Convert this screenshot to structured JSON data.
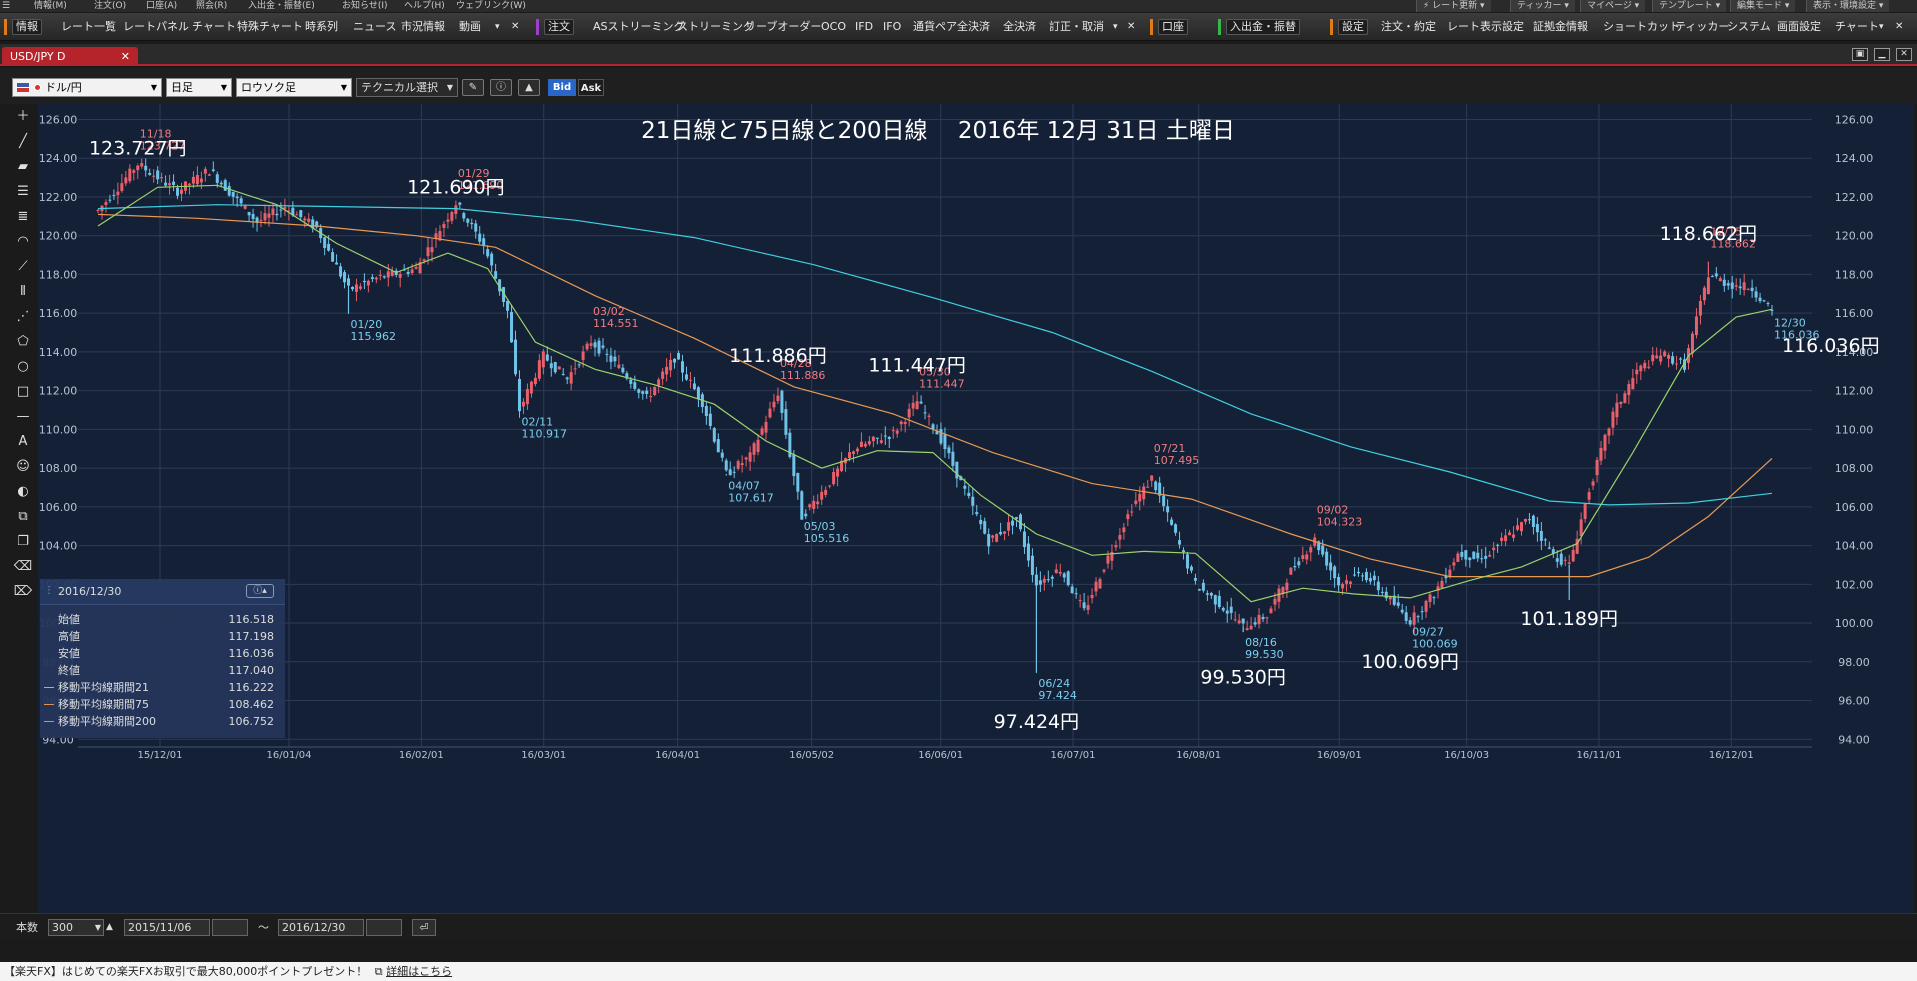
{
  "menubar": {
    "items": [
      "情報(M)",
      "注文(O)",
      "口座(A)",
      "照会(R)",
      "入出金・振替(E)",
      "お知らせ(I)",
      "ヘルプ(H)",
      "ウェブリンク(W)"
    ],
    "right_items": [
      "⚡ レート更新 ▾",
      "ティッカー ▾",
      "マイページ ▾",
      "テンプレート ▾",
      "編集モード ▾",
      "表示・環境設定 ▾"
    ]
  },
  "toolbar": {
    "items": [
      "情報",
      "レート一覧",
      "レートパネル",
      "チャート",
      "特殊チャート",
      "時系列",
      "ニュース",
      "市況情報",
      "動画",
      "注文",
      "ASストリーミング",
      "ストリーミング",
      "リーブオーダー",
      "OCO",
      "IFD",
      "IFO",
      "通貨ペア全決済",
      "全決済",
      "訂正・取消",
      "口座",
      "入出金・振替",
      "設定",
      "注文・約定",
      "レート表示設定",
      "証拠金情報",
      "ショートカット",
      "ティッカー",
      "システム",
      "画面設定",
      "チャート"
    ],
    "colors": {
      "orange": "#e07b1a",
      "purple": "#9b3fc9",
      "green": "#3bb54a"
    }
  },
  "tab": {
    "label": "USD/JPY D",
    "close": "✕"
  },
  "controls": {
    "pair": "ドル/円",
    "period": "日足",
    "chart_kind": "ロウソク足",
    "technical": "テクニカル選択",
    "bid": "Bid",
    "ask": "Ask"
  },
  "chart_title": "21日線と75日線と200日線　 2016年 12月 31日 土曜日",
  "chart_data": {
    "type": "candlestick",
    "ylim": [
      94,
      126
    ],
    "y_ticks": [
      "126.00",
      "124.00",
      "122.00",
      "120.00",
      "118.00",
      "116.00",
      "114.00",
      "112.00",
      "110.00",
      "108.00",
      "106.00",
      "104.00",
      "102.00",
      "100.00",
      "98.00",
      "96.00",
      "94.00"
    ],
    "x_ticks": [
      "15/12/01",
      "16/01/04",
      "16/02/01",
      "16/03/01",
      "16/04/01",
      "16/05/02",
      "16/06/01",
      "16/07/01",
      "16/08/01",
      "16/09/01",
      "16/10/03",
      "16/11/01",
      "16/12/01"
    ],
    "colors": {
      "up": "#e8606a",
      "down": "#6fc3e9",
      "ma21": "#9bd36a",
      "ma75": "#e89a52",
      "ma200": "#3fd0e0",
      "grid": "#2c3b55",
      "hi_label": "#f07c82",
      "lo_label": "#7ccff0"
    },
    "path": [
      [
        0,
        121.3
      ],
      [
        10,
        123.7
      ],
      [
        20,
        122.3
      ],
      [
        28,
        123.4
      ],
      [
        40,
        120.7
      ],
      [
        47,
        121.5
      ],
      [
        55,
        120.4
      ],
      [
        63,
        117.2
      ],
      [
        70,
        117.8
      ],
      [
        80,
        118.3
      ],
      [
        90,
        121.69
      ],
      [
        97,
        119.5
      ],
      [
        103,
        116.1
      ],
      [
        106,
        111.0
      ],
      [
        112,
        113.8
      ],
      [
        118,
        112.6
      ],
      [
        124,
        114.55
      ],
      [
        131,
        113.2
      ],
      [
        138,
        111.6
      ],
      [
        145,
        113.7
      ],
      [
        152,
        111.4
      ],
      [
        158,
        107.7
      ],
      [
        164,
        108.6
      ],
      [
        171,
        111.9
      ],
      [
        177,
        105.5
      ],
      [
        183,
        107.0
      ],
      [
        190,
        109.0
      ],
      [
        200,
        109.8
      ],
      [
        206,
        111.45
      ],
      [
        212,
        109.5
      ],
      [
        218,
        106.8
      ],
      [
        224,
        104.2
      ],
      [
        231,
        105.4
      ],
      [
        236,
        102.0
      ],
      [
        242,
        102.8
      ],
      [
        248,
        100.6
      ],
      [
        254,
        103.4
      ],
      [
        260,
        106.0
      ],
      [
        265,
        107.5
      ],
      [
        270,
        105.0
      ],
      [
        276,
        102.0
      ],
      [
        282,
        101.0
      ],
      [
        288,
        99.8
      ],
      [
        294,
        100.4
      ],
      [
        300,
        102.7
      ],
      [
        306,
        104.3
      ],
      [
        312,
        102.0
      ],
      [
        318,
        102.6
      ],
      [
        324,
        101.4
      ],
      [
        330,
        100.1
      ],
      [
        336,
        101.5
      ],
      [
        342,
        103.6
      ],
      [
        348,
        103.3
      ],
      [
        354,
        104.4
      ],
      [
        360,
        105.4
      ],
      [
        366,
        103.5
      ],
      [
        370,
        103.0
      ],
      [
        375,
        106.9
      ],
      [
        381,
        110.8
      ],
      [
        387,
        113.0
      ],
      [
        393,
        113.9
      ],
      [
        399,
        113.3
      ],
      [
        405,
        118.0
      ],
      [
        410,
        117.5
      ],
      [
        416,
        117.3
      ],
      [
        421,
        116.0
      ]
    ],
    "ma21": [
      [
        0,
        120.5
      ],
      [
        15,
        122.5
      ],
      [
        30,
        122.6
      ],
      [
        45,
        121.6
      ],
      [
        60,
        119.6
      ],
      [
        75,
        118.1
      ],
      [
        88,
        119.1
      ],
      [
        98,
        118.3
      ],
      [
        110,
        114.5
      ],
      [
        125,
        113.1
      ],
      [
        140,
        112.3
      ],
      [
        155,
        111.3
      ],
      [
        168,
        109.4
      ],
      [
        182,
        108.0
      ],
      [
        196,
        108.9
      ],
      [
        210,
        108.8
      ],
      [
        222,
        106.6
      ],
      [
        236,
        104.6
      ],
      [
        250,
        103.5
      ],
      [
        263,
        103.7
      ],
      [
        276,
        103.6
      ],
      [
        290,
        101.1
      ],
      [
        303,
        101.8
      ],
      [
        316,
        101.5
      ],
      [
        330,
        101.3
      ],
      [
        345,
        102.2
      ],
      [
        358,
        102.9
      ],
      [
        372,
        104.1
      ],
      [
        386,
        108.8
      ],
      [
        400,
        113.8
      ],
      [
        412,
        115.8
      ],
      [
        421,
        116.2
      ]
    ],
    "ma75": [
      [
        0,
        121.1
      ],
      [
        25,
        120.9
      ],
      [
        55,
        120.5
      ],
      [
        80,
        120.0
      ],
      [
        100,
        119.4
      ],
      [
        125,
        116.9
      ],
      [
        150,
        114.7
      ],
      [
        175,
        112.2
      ],
      [
        200,
        110.8
      ],
      [
        225,
        108.8
      ],
      [
        250,
        107.2
      ],
      [
        275,
        106.4
      ],
      [
        300,
        104.6
      ],
      [
        320,
        103.3
      ],
      [
        340,
        102.4
      ],
      [
        360,
        102.4
      ],
      [
        375,
        102.4
      ],
      [
        390,
        103.4
      ],
      [
        405,
        105.5
      ],
      [
        421,
        108.5
      ]
    ],
    "ma200": [
      [
        0,
        121.4
      ],
      [
        30,
        121.6
      ],
      [
        60,
        121.5
      ],
      [
        90,
        121.4
      ],
      [
        120,
        120.8
      ],
      [
        150,
        119.9
      ],
      [
        180,
        118.5
      ],
      [
        210,
        116.8
      ],
      [
        240,
        115.0
      ],
      [
        265,
        113.0
      ],
      [
        290,
        110.8
      ],
      [
        315,
        109.1
      ],
      [
        340,
        107.8
      ],
      [
        365,
        106.3
      ],
      [
        380,
        106.1
      ],
      [
        400,
        106.2
      ],
      [
        421,
        106.7
      ]
    ],
    "point_labels": [
      {
        "date": "11/18",
        "value": "123.727",
        "kind": "hi"
      },
      {
        "date": "01/29",
        "value": "121.690",
        "kind": "hi"
      },
      {
        "date": "01/20",
        "value": "115.962",
        "kind": "lo"
      },
      {
        "date": "02/11",
        "value": "110.917",
        "kind": "lo"
      },
      {
        "date": "03/02",
        "value": "114.551",
        "kind": "hi"
      },
      {
        "date": "04/07",
        "value": "107.617",
        "kind": "lo"
      },
      {
        "date": "04/28",
        "value": "111.886",
        "kind": "hi"
      },
      {
        "date": "05/03",
        "value": "105.516",
        "kind": "lo"
      },
      {
        "date": "05/30",
        "value": "111.447",
        "kind": "hi"
      },
      {
        "date": "06/24",
        "value": "97.424",
        "kind": "lo"
      },
      {
        "date": "07/21",
        "value": "107.495",
        "kind": "hi"
      },
      {
        "date": "08/16",
        "value": "99.530",
        "kind": "lo"
      },
      {
        "date": "09/02",
        "value": "104.323",
        "kind": "hi"
      },
      {
        "date": "09/27",
        "value": "100.069",
        "kind": "lo"
      },
      {
        "date": "12/15",
        "value": "118.662",
        "kind": "hi"
      },
      {
        "date": "12/30",
        "value": "116.036",
        "kind": "lo"
      }
    ],
    "big_labels": [
      "123.727円",
      "121.690円",
      "111.886円",
      "111.447円",
      "97.424円",
      "99.530円",
      "100.069円",
      "101.189円",
      "118.662円",
      "116.036円"
    ]
  },
  "infobox": {
    "date": "2016/12/30",
    "rows": [
      {
        "label": "始値",
        "value": "116.518",
        "color": ""
      },
      {
        "label": "高値",
        "value": "117.198",
        "color": ""
      },
      {
        "label": "安値",
        "value": "116.036",
        "color": ""
      },
      {
        "label": "終値",
        "value": "117.040",
        "color": ""
      },
      {
        "label": "移動平均線期間21",
        "value": "116.222",
        "color": "#9bd36a"
      },
      {
        "label": "移動平均線期間75",
        "value": "108.462",
        "color": "#e89a52"
      },
      {
        "label": "移動平均線期間200",
        "value": "106.752",
        "color": "#3fd0e0"
      }
    ]
  },
  "bottom": {
    "count_label": "本数",
    "count_value": "300",
    "from_date": "2015/11/06",
    "tilde": "〜",
    "to_date": "2016/12/30"
  },
  "footer": {
    "text": "【楽天FX】はじめての楽天FXお取引で最大80,000ポイントプレゼント！",
    "link": "詳細はこちら"
  }
}
